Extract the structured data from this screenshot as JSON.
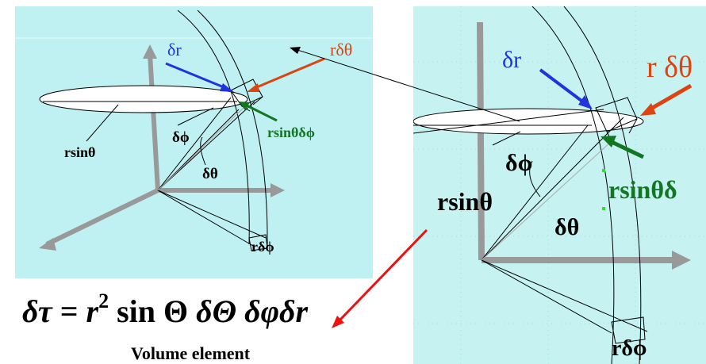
{
  "left_diagram": {
    "labels": {
      "dr": "δr",
      "r_dtheta": "rδθ",
      "dphi": "δϕ",
      "r_sin_theta_dtheta_dphi": "rsinθδϕ",
      "r_sin_theta": "rsinθ",
      "dtheta": "δθ",
      "r_dphi": "rδϕ"
    },
    "colors": {
      "dr": "#2233dd",
      "r_dtheta": "#dd4411",
      "r_sin_theta_dtheta_dphi": "#117722"
    }
  },
  "right_diagram": {
    "labels": {
      "dr": "δr",
      "r_dtheta": "r δθ",
      "dphi": "δϕ",
      "r_sin_theta_dtheta": "rsinθδ",
      "r_sin_theta": "rsinθ",
      "dtheta": "δθ",
      "r_dphi": "rδϕ"
    }
  },
  "formula": {
    "lhs": "δτ",
    "equals": " = ",
    "r": "r",
    "exponent": "2",
    "sin": " sin ",
    "theta": "Θ",
    "rest": " δΘ δφδr"
  },
  "caption": "Volume element"
}
